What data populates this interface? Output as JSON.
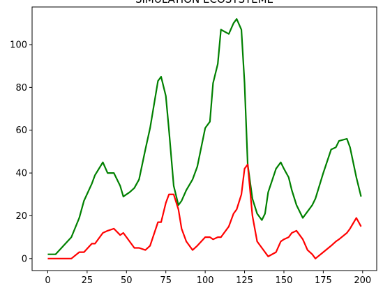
{
  "chart_data": {
    "type": "line",
    "title": "SIMULATION ECOSYSTEME",
    "xlabel": "",
    "ylabel": "",
    "xlim": [
      -9.95,
      208.95
    ],
    "ylim": [
      -5.6,
      117.6
    ],
    "xticks": [
      0,
      25,
      50,
      75,
      100,
      125,
      150,
      175,
      200
    ],
    "yticks": [
      0,
      20,
      40,
      60,
      80,
      100
    ],
    "grid": false,
    "legend": "none",
    "series": [
      {
        "color": "#008000",
        "x": [
          0,
          5,
          10,
          15,
          20,
          23,
          28,
          30,
          35,
          38,
          42,
          46,
          48,
          52,
          55,
          58,
          62,
          65,
          70,
          72,
          75,
          77,
          80,
          83,
          85,
          88,
          92,
          95,
          100,
          103,
          105,
          108,
          110,
          115,
          118,
          120,
          123,
          125,
          127,
          130,
          133,
          136,
          138,
          140,
          145,
          148,
          150,
          153,
          155,
          158,
          162,
          165,
          168,
          170,
          175,
          180,
          183,
          185,
          190,
          192,
          196,
          199
        ],
        "y": [
          2,
          2,
          6,
          10,
          19,
          27,
          35,
          39,
          45,
          40,
          40,
          34,
          29,
          31,
          33,
          37,
          51,
          61,
          83,
          85,
          76,
          60,
          34,
          25,
          27,
          32,
          37,
          43,
          61,
          64,
          82,
          91,
          107,
          105,
          110,
          112,
          107,
          82,
          44,
          28,
          21,
          18,
          21,
          31,
          42,
          45,
          42,
          38,
          32,
          25,
          19,
          22,
          25,
          28,
          40,
          51,
          52,
          55,
          56,
          52,
          38,
          29
        ]
      },
      {
        "color": "#ff0000",
        "x": [
          0,
          5,
          10,
          15,
          20,
          23,
          28,
          30,
          35,
          38,
          42,
          46,
          48,
          52,
          55,
          58,
          62,
          65,
          70,
          72,
          75,
          77,
          80,
          83,
          85,
          88,
          92,
          95,
          100,
          103,
          105,
          108,
          110,
          115,
          118,
          120,
          123,
          125,
          127,
          130,
          133,
          136,
          138,
          140,
          145,
          148,
          150,
          153,
          155,
          158,
          162,
          165,
          168,
          170,
          175,
          180,
          183,
          185,
          190,
          192,
          196,
          199
        ],
        "y": [
          0,
          0,
          0,
          0,
          3,
          3,
          7,
          7,
          12,
          13,
          14,
          11,
          12,
          8,
          5,
          5,
          4,
          6,
          17,
          17,
          26,
          30,
          30,
          23,
          14,
          8,
          4,
          6,
          10,
          10,
          9,
          10,
          10,
          15,
          21,
          23,
          30,
          42,
          44,
          20,
          8,
          5,
          3,
          1,
          3,
          8,
          9,
          10,
          12,
          13,
          9,
          4,
          2,
          0,
          3,
          6,
          8,
          9,
          12,
          14,
          19,
          15
        ]
      }
    ]
  }
}
